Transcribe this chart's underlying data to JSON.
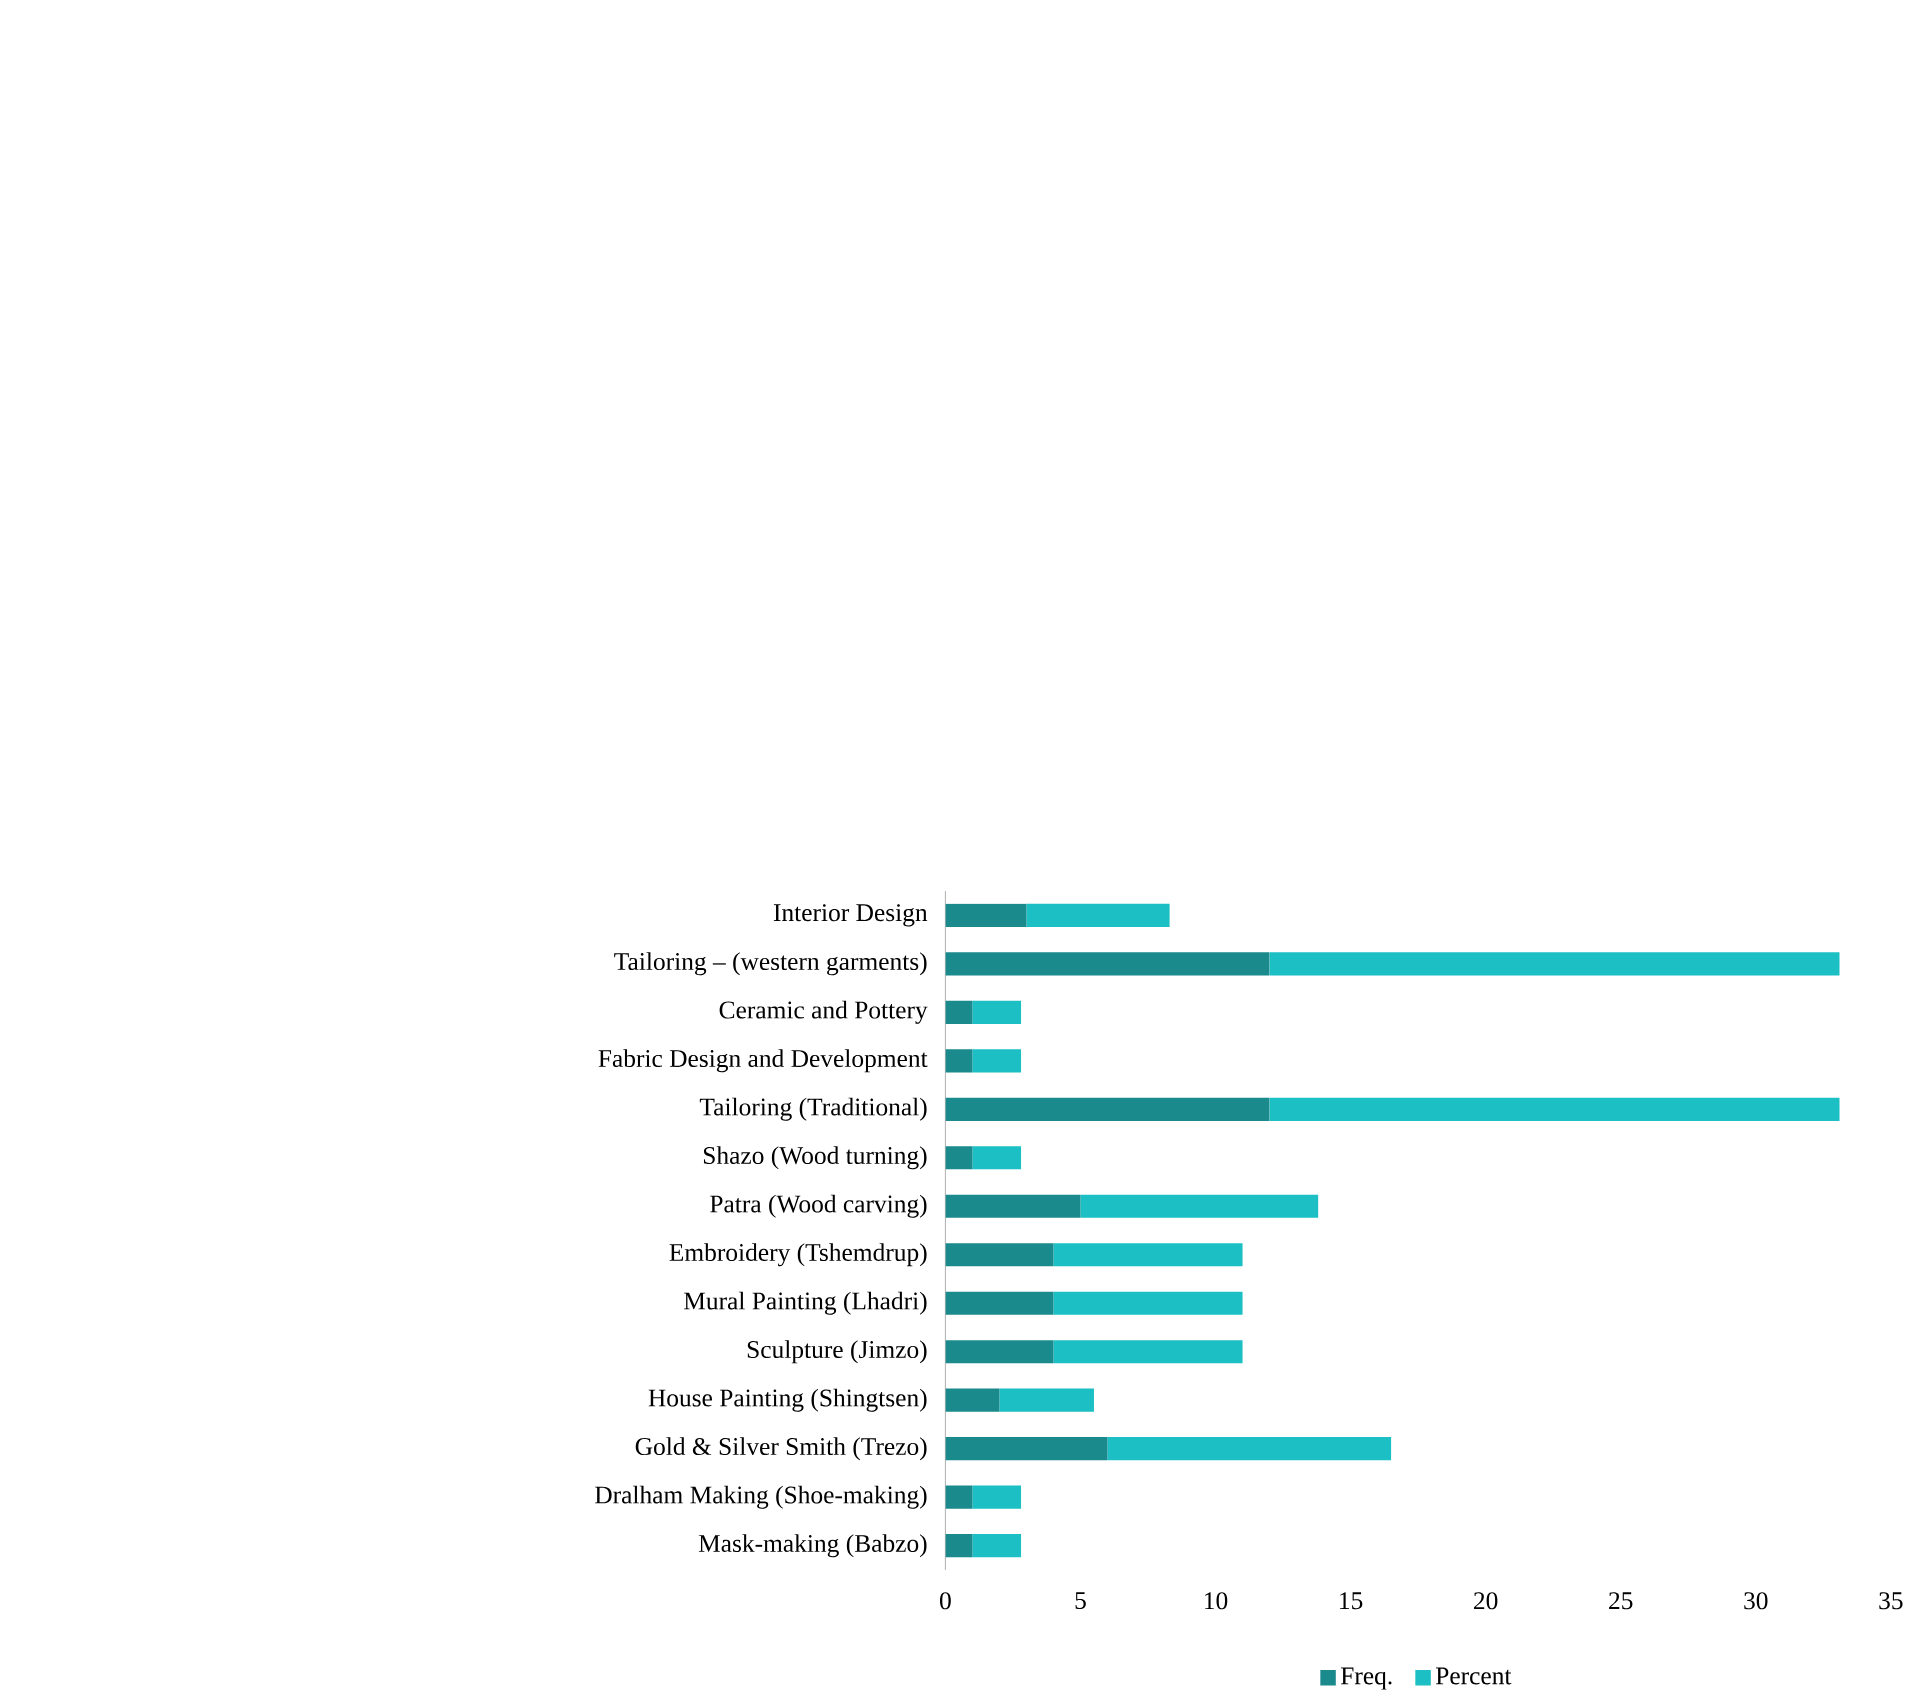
{
  "chart_data": {
    "type": "bar",
    "orientation": "horizontal",
    "stacked": true,
    "categories": [
      "Interior Design",
      "Tailoring – (western garments)",
      "Ceramic and Pottery",
      "Fabric Design and Development",
      "Tailoring (Traditional)",
      "Shazo (Wood turning)",
      "Patra (Wood carving)",
      "Embroidery (Tshemdrup)",
      "Mural Painting (Lhadri)",
      "Sculpture (Jimzo)",
      "House Painting (Shingtsen)",
      "Gold & Silver Smith (Trezo)",
      "Dralham Making (Shoe-making)",
      "Mask-making (Babzo)"
    ],
    "series": [
      {
        "name": "Freq.",
        "color": "#1a8a8c",
        "values": [
          3,
          12,
          1,
          1,
          12,
          1,
          5,
          4,
          4,
          4,
          2,
          6,
          1,
          1
        ]
      },
      {
        "name": "Percent",
        "color": "#1bbfc4",
        "values": [
          5.3,
          21.1,
          1.8,
          1.8,
          21.1,
          1.8,
          8.8,
          7.0,
          7.0,
          7.0,
          3.5,
          10.5,
          1.8,
          1.8
        ]
      }
    ],
    "xlim": [
      0,
      35
    ],
    "xticks": [
      0,
      5,
      10,
      15,
      20,
      25,
      30,
      35
    ],
    "grid": false,
    "legend": "bottom"
  }
}
